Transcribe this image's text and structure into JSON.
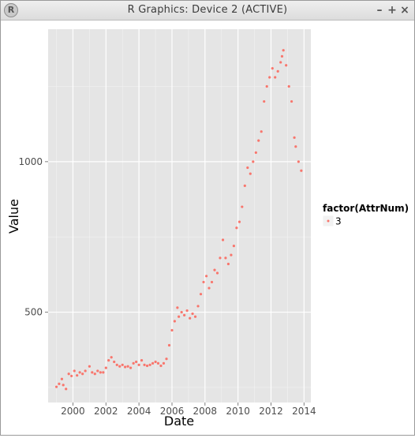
{
  "window": {
    "title": "R Graphics: Device 2 (ACTIVE)",
    "app_icon_glyph": "R",
    "controls": {
      "minimize": "–",
      "maximize": "+",
      "close": "×"
    }
  },
  "colors": {
    "panel_bg": "#e5e5e5",
    "grid_major": "#ffffff",
    "grid_minor": "#f2f2f2",
    "point": "#f8766d",
    "tick_label": "#4d4d4d",
    "axis_title": "#000000"
  },
  "chart_data": {
    "type": "scatter",
    "xlabel": "Date",
    "ylabel": "Value",
    "x_type": "date",
    "xlim": [
      "1998-07-01",
      "2014-06-01"
    ],
    "ylim": [
      200,
      1440
    ],
    "x_ticks": [
      {
        "value": "2000-01-01",
        "label": "2000"
      },
      {
        "value": "2002-01-01",
        "label": "2002"
      },
      {
        "value": "2004-01-01",
        "label": "2004"
      },
      {
        "value": "2006-01-01",
        "label": "2006"
      },
      {
        "value": "2008-01-01",
        "label": "2008"
      },
      {
        "value": "2010-01-01",
        "label": "2010"
      },
      {
        "value": "2012-01-01",
        "label": "2012"
      },
      {
        "value": "2014-01-01",
        "label": "2014"
      }
    ],
    "y_ticks": [
      {
        "value": 500,
        "label": "500"
      },
      {
        "value": 1000,
        "label": "1000"
      }
    ],
    "grid": true,
    "legend_position": "right",
    "legend": {
      "title": "factor(AttrNum)",
      "entries": [
        "3"
      ]
    },
    "series": [
      {
        "name": "3",
        "points": [
          {
            "x": "1999-01-01",
            "y": 252
          },
          {
            "x": "1999-03-01",
            "y": 262
          },
          {
            "x": "1999-05-01",
            "y": 278
          },
          {
            "x": "1999-06-01",
            "y": 258
          },
          {
            "x": "1999-08-01",
            "y": 245
          },
          {
            "x": "1999-10-01",
            "y": 295
          },
          {
            "x": "1999-12-01",
            "y": 288
          },
          {
            "x": "2000-02-01",
            "y": 305
          },
          {
            "x": "2000-04-01",
            "y": 290
          },
          {
            "x": "2000-06-01",
            "y": 300
          },
          {
            "x": "2000-08-01",
            "y": 295
          },
          {
            "x": "2000-10-01",
            "y": 305
          },
          {
            "x": "2001-01-01",
            "y": 320
          },
          {
            "x": "2001-03-01",
            "y": 300
          },
          {
            "x": "2001-05-01",
            "y": 295
          },
          {
            "x": "2001-07-01",
            "y": 305
          },
          {
            "x": "2001-09-01",
            "y": 300
          },
          {
            "x": "2001-11-01",
            "y": 300
          },
          {
            "x": "2002-01-01",
            "y": 315
          },
          {
            "x": "2002-03-01",
            "y": 340
          },
          {
            "x": "2002-05-01",
            "y": 350
          },
          {
            "x": "2002-07-01",
            "y": 335
          },
          {
            "x": "2002-09-01",
            "y": 325
          },
          {
            "x": "2002-11-01",
            "y": 320
          },
          {
            "x": "2003-01-01",
            "y": 325
          },
          {
            "x": "2003-03-01",
            "y": 318
          },
          {
            "x": "2003-05-01",
            "y": 320
          },
          {
            "x": "2003-07-01",
            "y": 315
          },
          {
            "x": "2003-09-01",
            "y": 330
          },
          {
            "x": "2003-11-01",
            "y": 335
          },
          {
            "x": "2004-01-01",
            "y": 325
          },
          {
            "x": "2004-03-01",
            "y": 340
          },
          {
            "x": "2004-05-01",
            "y": 325
          },
          {
            "x": "2004-07-01",
            "y": 322
          },
          {
            "x": "2004-09-01",
            "y": 325
          },
          {
            "x": "2004-11-01",
            "y": 330
          },
          {
            "x": "2005-01-01",
            "y": 335
          },
          {
            "x": "2005-03-01",
            "y": 330
          },
          {
            "x": "2005-05-01",
            "y": 322
          },
          {
            "x": "2005-07-01",
            "y": 330
          },
          {
            "x": "2005-09-01",
            "y": 345
          },
          {
            "x": "2005-11-01",
            "y": 390
          },
          {
            "x": "2006-01-01",
            "y": 440
          },
          {
            "x": "2006-03-01",
            "y": 470
          },
          {
            "x": "2006-05-01",
            "y": 515
          },
          {
            "x": "2006-06-01",
            "y": 485
          },
          {
            "x": "2006-08-01",
            "y": 500
          },
          {
            "x": "2006-10-01",
            "y": 490
          },
          {
            "x": "2006-12-01",
            "y": 505
          },
          {
            "x": "2007-02-01",
            "y": 480
          },
          {
            "x": "2007-04-01",
            "y": 495
          },
          {
            "x": "2007-06-01",
            "y": 485
          },
          {
            "x": "2007-08-01",
            "y": 520
          },
          {
            "x": "2007-10-01",
            "y": 560
          },
          {
            "x": "2007-12-01",
            "y": 600
          },
          {
            "x": "2008-02-01",
            "y": 620
          },
          {
            "x": "2008-04-01",
            "y": 580
          },
          {
            "x": "2008-06-01",
            "y": 600
          },
          {
            "x": "2008-08-01",
            "y": 640
          },
          {
            "x": "2008-10-01",
            "y": 630
          },
          {
            "x": "2008-12-01",
            "y": 680
          },
          {
            "x": "2009-02-01",
            "y": 740
          },
          {
            "x": "2009-04-01",
            "y": 680
          },
          {
            "x": "2009-06-01",
            "y": 660
          },
          {
            "x": "2009-08-01",
            "y": 690
          },
          {
            "x": "2009-10-01",
            "y": 720
          },
          {
            "x": "2009-12-01",
            "y": 780
          },
          {
            "x": "2010-02-01",
            "y": 800
          },
          {
            "x": "2010-04-01",
            "y": 850
          },
          {
            "x": "2010-06-01",
            "y": 920
          },
          {
            "x": "2010-08-01",
            "y": 980
          },
          {
            "x": "2010-10-01",
            "y": 960
          },
          {
            "x": "2010-12-01",
            "y": 1000
          },
          {
            "x": "2011-02-01",
            "y": 1030
          },
          {
            "x": "2011-04-01",
            "y": 1070
          },
          {
            "x": "2011-06-01",
            "y": 1100
          },
          {
            "x": "2011-08-01",
            "y": 1200
          },
          {
            "x": "2011-10-01",
            "y": 1250
          },
          {
            "x": "2011-12-01",
            "y": 1280
          },
          {
            "x": "2012-02-01",
            "y": 1310
          },
          {
            "x": "2012-04-01",
            "y": 1280
          },
          {
            "x": "2012-06-01",
            "y": 1300
          },
          {
            "x": "2012-08-01",
            "y": 1330
          },
          {
            "x": "2012-09-01",
            "y": 1350
          },
          {
            "x": "2012-10-01",
            "y": 1370
          },
          {
            "x": "2012-12-01",
            "y": 1320
          },
          {
            "x": "2013-02-01",
            "y": 1250
          },
          {
            "x": "2013-04-01",
            "y": 1200
          },
          {
            "x": "2013-06-01",
            "y": 1080
          },
          {
            "x": "2013-07-01",
            "y": 1050
          },
          {
            "x": "2013-09-01",
            "y": 1000
          },
          {
            "x": "2013-11-01",
            "y": 970
          }
        ]
      }
    ]
  }
}
